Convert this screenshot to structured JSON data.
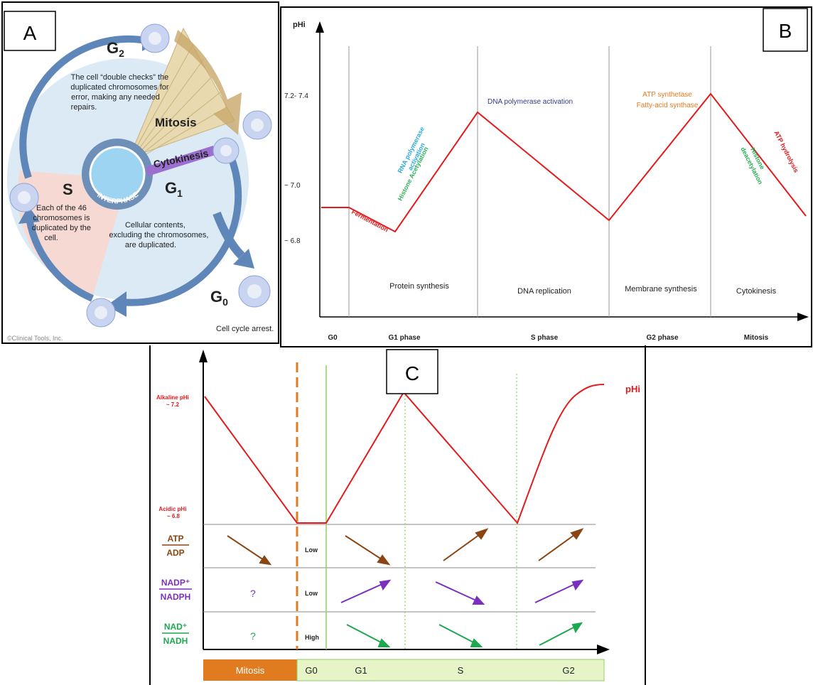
{
  "panel_a": {
    "letter": "A",
    "g2_text": [
      "The cell “double checks” the",
      "duplicated chromosomes for",
      "error, making any needed",
      "repairs."
    ],
    "mitosis": "Mitosis",
    "cytokinesis": "Cytokinesis",
    "interphase": "INTERPHASE",
    "s_text": [
      "Each of the 46",
      "chromosomes is",
      "duplicated by the",
      "cell."
    ],
    "g1_text": [
      "Cellular contents,",
      "excluding the chromosomes,",
      "are duplicated."
    ],
    "g0_text": "Cell cycle arrest.",
    "copyright": "©Clinical Tools, Inc."
  },
  "panel_b": {
    "letter": "B",
    "ylabel": "pHi",
    "ytick_high": "7.2- 7.4",
    "ytick_mid": "~ 7.0",
    "ytick_low": "~ 6.8",
    "phases": [
      "G0",
      "G1 phase",
      "S phase",
      "G2 phase",
      "Mitosis"
    ],
    "processes": [
      "Protein synthesis",
      "DNA replication",
      "Membrane synthesis",
      "Cytokinesis"
    ],
    "fermentation": "Fermentation",
    "rna_pol": [
      "RNA polymerase",
      "activation"
    ],
    "histone_acetyl": "Histone Acetylation",
    "dna_pol": "DNA polymerase activation",
    "atp_synth": "ATP synthetase",
    "fatty_acid": "Fatty-acid synthase",
    "atp_hydrolysis": "ATP hydrolysis",
    "histone_deacetyl": [
      "Histone",
      "deacetylation"
    ]
  },
  "panel_c": {
    "letter": "C",
    "curve_label": "pHi",
    "alkaline": [
      "Alkaline pHi",
      "~ 7.2"
    ],
    "acidic": [
      "Acidic pHi",
      "~ 6.8"
    ],
    "rows": [
      {
        "num": "ATP",
        "den": "ADP",
        "color": "#8b4513",
        "g0": "Low",
        "mitosis": ""
      },
      {
        "num": "NADP⁺",
        "den": "NADPH",
        "color": "#7b2fbf",
        "g0": "Low",
        "mitosis": "?"
      },
      {
        "num": "NAD⁺",
        "den": "NADH",
        "color": "#1ea84f",
        "g0": "High",
        "mitosis": "?"
      }
    ],
    "bar": {
      "mitosis": "Mitosis",
      "g0": "G0",
      "g1": "G1",
      "s": "S",
      "g2": "G2"
    },
    "colors": {
      "mitosis_bar": "#e07b20",
      "phase_bar": "#e6f4c8",
      "curve": "#e41a1c"
    }
  }
}
